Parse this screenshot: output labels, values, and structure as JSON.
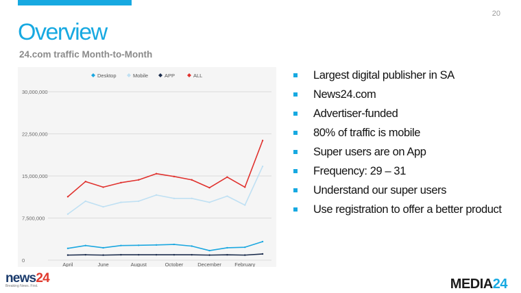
{
  "slide": {
    "page_number": "20",
    "title": "Overview",
    "subtitle": "24.com traffic Month-to-Month",
    "bullets": [
      "Largest digital publisher in SA",
      "News24.com",
      "Advertiser-funded",
      "80% of traffic is mobile",
      "Super users are on App",
      "Frequency: 29 – 31",
      "Understand our super users",
      "Use registration to offer a better product"
    ],
    "logos": {
      "left": {
        "word": "news",
        "num": "24",
        "tagline": "Breaking News. First."
      },
      "right": {
        "word": "MEDIA",
        "num": "24"
      }
    }
  },
  "colors": {
    "accent": "#17a9e1",
    "desktop": "#1aa7e0",
    "mobile": "#bfe0f3",
    "app": "#1a2b4c",
    "all": "#e0312d"
  },
  "chart_data": {
    "type": "line",
    "title": "",
    "xlabel": "",
    "ylabel": "",
    "ylim": [
      0,
      30000000
    ],
    "yticks": [
      0,
      7500000,
      15000000,
      22500000,
      30000000
    ],
    "ytick_labels": [
      "0",
      "7,500,000",
      "15,000,000",
      "22,500,000",
      "30,000,000"
    ],
    "x_tick_labels": [
      "April",
      "June",
      "August",
      "October",
      "December",
      "February"
    ],
    "x_tick_indices": [
      0,
      2,
      4,
      6,
      8,
      10
    ],
    "x_count": 12,
    "grid": true,
    "legend_position": "top",
    "series": [
      {
        "name": "Desktop",
        "color": "#1aa7e0",
        "values": [
          2100000,
          2600000,
          2200000,
          2600000,
          2650000,
          2700000,
          2800000,
          2500000,
          1700000,
          2200000,
          2300000,
          3300000
        ]
      },
      {
        "name": "Mobile",
        "color": "#bfe0f3",
        "values": [
          8200000,
          10500000,
          9500000,
          10300000,
          10500000,
          11600000,
          11000000,
          11000000,
          10300000,
          11400000,
          9800000,
          16700000
        ]
      },
      {
        "name": "APP",
        "color": "#1a2b4c",
        "values": [
          900000,
          950000,
          900000,
          950000,
          950000,
          950000,
          950000,
          950000,
          900000,
          950000,
          900000,
          1100000
        ]
      },
      {
        "name": "ALL",
        "color": "#e0312d",
        "values": [
          11300000,
          14000000,
          13000000,
          13800000,
          14300000,
          15400000,
          14900000,
          14300000,
          12900000,
          14800000,
          13000000,
          21300000
        ]
      }
    ]
  }
}
